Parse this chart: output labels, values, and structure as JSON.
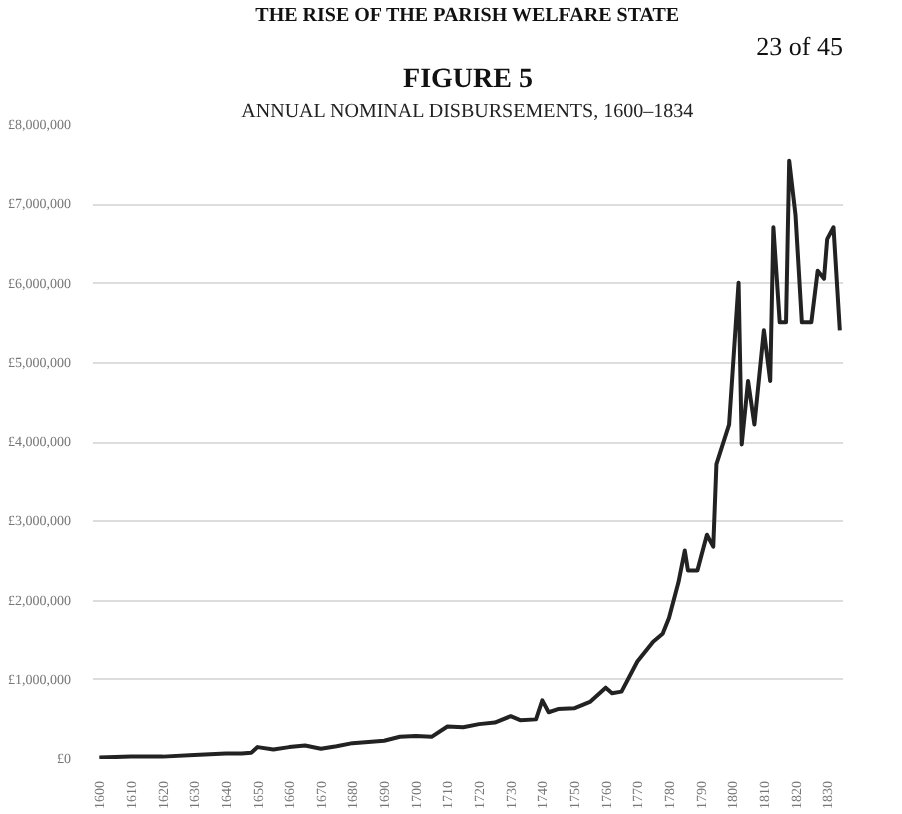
{
  "chart_data": {
    "type": "line",
    "title": "FIGURE 5",
    "subtitle": "ANNUAL NOMINAL DISBURSEMENTS, 1600–1834",
    "annotations": [
      "THE RISE OF THE PARISH WELFARE STATE",
      "23 of 45"
    ],
    "series": [
      {
        "color": "#222222",
        "x": [
          1600,
          1610,
          1620,
          1630,
          1640,
          1645,
          1648,
          1650,
          1655,
          1660,
          1665,
          1670,
          1675,
          1680,
          1690,
          1695,
          1700,
          1705,
          1710,
          1715,
          1720,
          1725,
          1730,
          1733,
          1738,
          1740,
          1742,
          1745,
          1750,
          1755,
          1760,
          1762,
          1765,
          1770,
          1775,
          1778,
          1780,
          1783,
          1785,
          1786,
          1789,
          1792,
          1794,
          1795,
          1797,
          1799,
          1802,
          1803,
          1805,
          1807,
          1810,
          1812,
          1813,
          1815,
          1817,
          1818,
          1820,
          1822,
          1825,
          1827,
          1829,
          1830,
          1832,
          1834
        ],
        "values": [
          20000,
          30000,
          30000,
          50000,
          70000,
          70000,
          80000,
          150000,
          120000,
          150000,
          170000,
          130000,
          160000,
          200000,
          230000,
          280000,
          290000,
          280000,
          410000,
          400000,
          440000,
          460000,
          540000,
          490000,
          500000,
          740000,
          590000,
          630000,
          640000,
          720000,
          900000,
          830000,
          850000,
          1230000,
          1480000,
          1580000,
          1780000,
          2230000,
          2630000,
          2380000,
          2380000,
          2830000,
          2680000,
          3720000,
          3970000,
          4220000,
          6010000,
          3970000,
          4770000,
          4220000,
          5410000,
          4770000,
          6710000,
          5510000,
          5510000,
          7550000,
          6860000,
          5510000,
          5510000,
          6160000,
          6060000,
          6560000,
          6710000,
          5410000
        ]
      }
    ],
    "xlim": [
      1598,
      1835
    ],
    "xticks": [
      1600,
      1610,
      1620,
      1630,
      1640,
      1650,
      1660,
      1670,
      1680,
      1690,
      1700,
      1710,
      1720,
      1730,
      1740,
      1750,
      1760,
      1770,
      1780,
      1790,
      1800,
      1810,
      1820,
      1830
    ],
    "ylim": [
      0,
      8000000
    ],
    "yticks": [
      {
        "value": 0,
        "label": "£0"
      },
      {
        "value": 1000000,
        "label": "£1,000,000"
      },
      {
        "value": 2000000,
        "label": "£2,000,000"
      },
      {
        "value": 3000000,
        "label": "£3,000,000"
      },
      {
        "value": 4000000,
        "label": "£4,000,000"
      },
      {
        "value": 5000000,
        "label": "£5,000,000"
      },
      {
        "value": 6000000,
        "label": "£6,000,000"
      },
      {
        "value": 7000000,
        "label": "£7,000,000"
      },
      {
        "value": 8000000,
        "label": "£8,000,000"
      }
    ],
    "grid": "y",
    "marker": "none",
    "line_style": "solid"
  }
}
